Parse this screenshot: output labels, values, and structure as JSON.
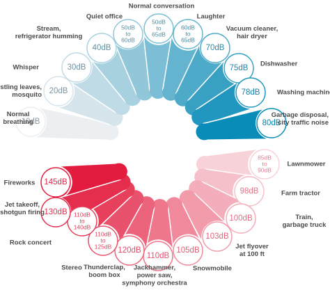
{
  "top": [
    {
      "db": [
        "10dB"
      ],
      "label": [
        "Normal",
        "breathing"
      ]
    },
    {
      "db": [
        "20dB"
      ],
      "label": [
        "Rustling leaves,",
        "mosquito"
      ]
    },
    {
      "db": [
        "30dB"
      ],
      "label": [
        "Whisper"
      ]
    },
    {
      "db": [
        "40dB"
      ],
      "label": [
        "Stream,",
        "refrigerator humming"
      ]
    },
    {
      "db": [
        "50dB",
        "to",
        "60dB"
      ],
      "label": [
        "Quiet office"
      ]
    },
    {
      "db": [
        "50dB",
        "to",
        "65dB"
      ],
      "label": [
        "Normal conversation"
      ]
    },
    {
      "db": [
        "60dB",
        "to",
        "65dB"
      ],
      "label": [
        "Laughter"
      ]
    },
    {
      "db": [
        "70dB"
      ],
      "label": [
        "Vacuum cleaner,",
        "hair dryer"
      ]
    },
    {
      "db": [
        "75dB"
      ],
      "label": [
        "Dishwasher"
      ]
    },
    {
      "db": [
        "78dB"
      ],
      "label": [
        "Washing machine"
      ]
    },
    {
      "db": [
        "80dB"
      ],
      "label": [
        "Garbage disposal,",
        "city traffic noise"
      ]
    }
  ],
  "bottom": [
    {
      "db": [
        "85dB",
        "to",
        "90dB"
      ],
      "label": [
        "Lawnmower"
      ]
    },
    {
      "db": [
        "98dB"
      ],
      "label": [
        "Farm tractor"
      ]
    },
    {
      "db": [
        "100dB"
      ],
      "label": [
        "Train,",
        "garbage truck"
      ]
    },
    {
      "db": [
        "103dB"
      ],
      "label": [
        "Jet flyover",
        "at 100 ft"
      ]
    },
    {
      "db": [
        "105dB"
      ],
      "label": [
        "Snowmobile"
      ]
    },
    {
      "db": [
        "110dB"
      ],
      "label": [
        "Jackhammer,",
        "power saw,",
        "symphony orchestra"
      ]
    },
    {
      "db": [
        "120dB"
      ],
      "label": [
        "Thunderclap,",
        "boom box"
      ]
    },
    {
      "db": [
        "110dB",
        "to",
        "125dB"
      ],
      "label": [
        "Stereo"
      ]
    },
    {
      "db": [
        "110dB",
        "to",
        "140dB"
      ],
      "label": [
        "Rock concert"
      ]
    },
    {
      "db": [
        "130dB"
      ],
      "label": [
        "Jet takeoff,",
        "shotgun firing"
      ]
    },
    {
      "db": [
        "145dB"
      ],
      "label": [
        "Fireworks"
      ]
    }
  ]
}
